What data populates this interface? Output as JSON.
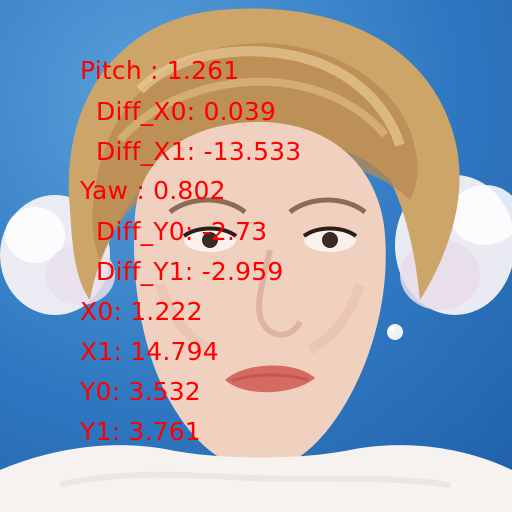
{
  "overlay": {
    "lines": [
      "Pitch : 1.261",
      "Diff_X0: 0.039",
      "Diff_X1: -13.533",
      "Yaw : 0.802",
      "Diff_Y0: -2.73",
      "Diff_Y1: -2.959",
      "X0: 1.222",
      "X1: 14.794",
      "Y0: 3.532",
      "Y1: 3.761"
    ],
    "text_color": "#ff0000"
  },
  "colors": {
    "background_blue": "#2f78c1",
    "hair": "#caa36a",
    "skin": "#f0d1c0",
    "lips": "#d46a60",
    "flowers": "#f2eef4",
    "dress": "#f5f1ee"
  }
}
